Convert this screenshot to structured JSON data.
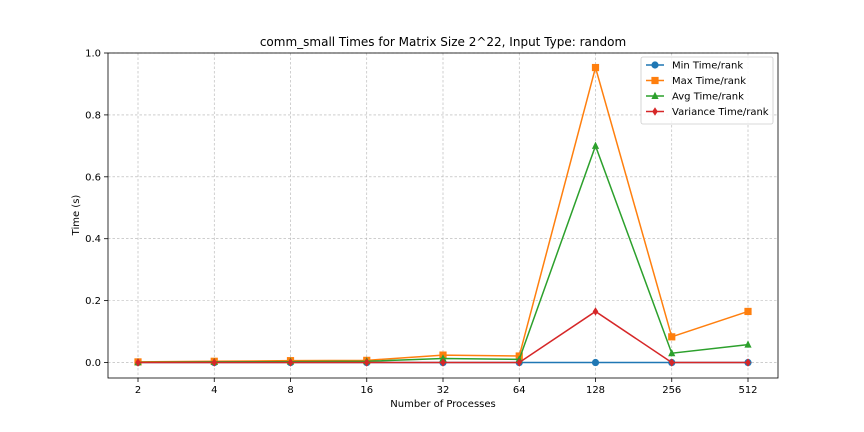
{
  "chart_data": {
    "type": "line",
    "title": "comm_small Times for Matrix Size 2^22, Input Type: random",
    "xlabel": "Number of Processes",
    "ylabel": "Time (s)",
    "categories": [
      "2",
      "4",
      "8",
      "16",
      "32",
      "64",
      "128",
      "256",
      "512"
    ],
    "ylim": [
      -0.05,
      1.0
    ],
    "yticks": [
      "0.0",
      "0.2",
      "0.4",
      "0.6",
      "0.8",
      "1.0"
    ],
    "grid": true,
    "legend_position": "top-right",
    "series": [
      {
        "name": "Min Time/rank",
        "color": "#1f77b4",
        "marker": "circle",
        "values": [
          0.0,
          0.0,
          0.0,
          0.0,
          0.0,
          0.0,
          0.0,
          0.0,
          0.0
        ]
      },
      {
        "name": "Max Time/rank",
        "color": "#ff7f0e",
        "marker": "square",
        "values": [
          0.002,
          0.004,
          0.006,
          0.007,
          0.024,
          0.021,
          0.953,
          0.083,
          0.165
        ]
      },
      {
        "name": "Avg Time/rank",
        "color": "#2ca02c",
        "marker": "triangle",
        "values": [
          0.001,
          0.002,
          0.003,
          0.004,
          0.013,
          0.01,
          0.7,
          0.03,
          0.058
        ]
      },
      {
        "name": "Variance Time/rank",
        "color": "#d62728",
        "marker": "diamond",
        "values": [
          0.0,
          0.0,
          0.0,
          0.0,
          0.0,
          0.0,
          0.165,
          0.0,
          0.0
        ]
      }
    ]
  }
}
